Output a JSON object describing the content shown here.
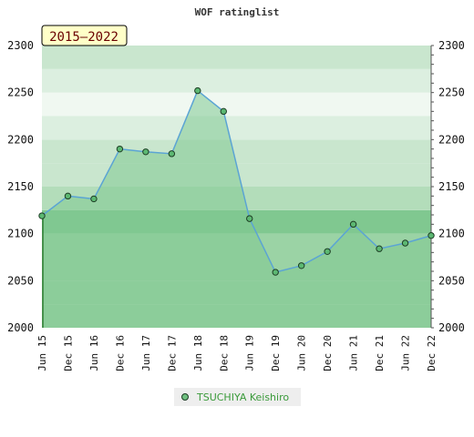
{
  "chart_data": {
    "type": "area",
    "title": "WOF ratinglist",
    "range_label": "2015—2022",
    "x_categories": [
      "Jun 15",
      "Dec 15",
      "Jun 16",
      "Dec 16",
      "Jun 17",
      "Dec 17",
      "Jun 18",
      "Dec 18",
      "Jun 19",
      "Dec 19",
      "Jun 20",
      "Dec 20",
      "Jun 21",
      "Dec 21",
      "Jun 22",
      "Dec 22"
    ],
    "y_ticks": [
      "2000",
      "2050",
      "2100",
      "2150",
      "2200",
      "2250",
      "2300"
    ],
    "ylim": [
      2000,
      2300
    ],
    "series": [
      {
        "name": "TSUCHIYA Keishiro",
        "x": [
          0,
          1,
          2,
          3,
          4,
          5,
          6,
          7,
          8,
          9,
          10,
          11,
          12,
          13,
          14,
          15
        ],
        "values": [
          2119,
          2140,
          2137,
          2190,
          2187,
          2185,
          2252,
          2230,
          2116,
          2059,
          2066,
          2081,
          2110,
          2084,
          2090,
          2098
        ]
      }
    ],
    "band_colors": [
      "#9bd3a5",
      "#b3ddba",
      "#c9e6ce",
      "#dcefe0",
      "#f0f8f1",
      "#80c890"
    ],
    "area_color": "#7fc991",
    "line_color": "#5ba4d4",
    "marker_color": "#5cb872",
    "legend_text_color": "#3a9a3a",
    "grid": false,
    "legend_position": "bottom-center"
  }
}
